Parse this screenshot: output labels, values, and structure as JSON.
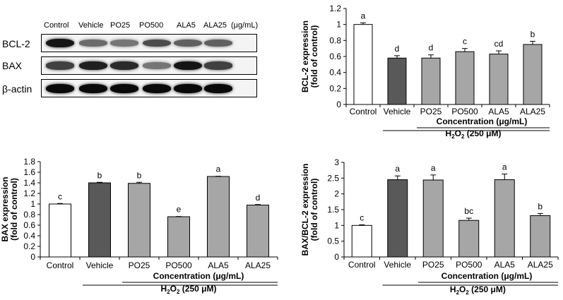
{
  "blot": {
    "lanes": [
      "Control",
      "Vehicle",
      "PO25",
      "PO500",
      "ALA5",
      "ALA25"
    ],
    "unit": "(μg/mL)",
    "rows": [
      {
        "label": "BCL-2",
        "intensity": [
          0.95,
          0.55,
          0.5,
          0.7,
          0.6,
          0.6
        ]
      },
      {
        "label": "BAX",
        "intensity": [
          0.75,
          0.9,
          0.85,
          0.5,
          0.95,
          0.75
        ]
      },
      {
        "label": "β-actin",
        "intensity": [
          1,
          1,
          1,
          1,
          1,
          1
        ]
      }
    ]
  },
  "chart_data": [
    {
      "type": "bar",
      "categories": [
        "Control",
        "Vehicle",
        "PO25",
        "PO500",
        "ALA5",
        "ALA25"
      ],
      "values": [
        1.0,
        0.58,
        0.58,
        0.66,
        0.63,
        0.75
      ],
      "errors": [
        0.02,
        0.03,
        0.04,
        0.04,
        0.04,
        0.04
      ],
      "letters": [
        "a",
        "d",
        "d",
        "c",
        "cd",
        "b"
      ],
      "colors": [
        "#ffffff",
        "#595959",
        "#a6a6a6",
        "#a6a6a6",
        "#a6a6a6",
        "#a6a6a6"
      ],
      "ylabel_line1": "BCL-2 expression",
      "ylabel_line2": "(fold of control)",
      "ylim": [
        0,
        1.2
      ],
      "yticks": [
        "0",
        "0.2",
        "0.4",
        "0.6",
        "0.8",
        "1",
        "1.2"
      ],
      "group_label": "Concentration (μg/mL)",
      "treatment_label": "H2O2 (250 μM)"
    },
    {
      "type": "bar",
      "categories": [
        "Control",
        "Vehicle",
        "PO25",
        "PO500",
        "ALA5",
        "ALA25"
      ],
      "values": [
        1.0,
        1.4,
        1.39,
        0.76,
        1.52,
        0.98
      ],
      "errors": [
        0.01,
        0.01,
        0.02,
        0.005,
        0.005,
        0.01
      ],
      "letters": [
        "c",
        "b",
        "b",
        "e",
        "a",
        "d"
      ],
      "colors": [
        "#ffffff",
        "#595959",
        "#a6a6a6",
        "#a6a6a6",
        "#a6a6a6",
        "#a6a6a6"
      ],
      "ylabel_line1": "BAX expression",
      "ylabel_line2": "(fold of control)",
      "ylim": [
        0,
        1.8
      ],
      "yticks": [
        "0",
        "0.2",
        "0.4",
        "0.6",
        "0.8",
        "1",
        "1.2",
        "1.4",
        "1.6",
        "1.8"
      ],
      "group_label": "Concentration (μg/mL)",
      "treatment_label": "H2O2 (250 μM)"
    },
    {
      "type": "bar",
      "categories": [
        "Control",
        "Vehicle",
        "PO25",
        "PO500",
        "ALA5",
        "ALA25"
      ],
      "values": [
        1.0,
        2.45,
        2.44,
        1.16,
        2.45,
        1.31
      ],
      "errors": [
        0.02,
        0.12,
        0.16,
        0.07,
        0.18,
        0.07
      ],
      "letters": [
        "c",
        "a",
        "a",
        "bc",
        "a",
        "b"
      ],
      "colors": [
        "#ffffff",
        "#595959",
        "#a6a6a6",
        "#a6a6a6",
        "#a6a6a6",
        "#a6a6a6"
      ],
      "ylabel_line1": "BAX/BCL-2 expression",
      "ylabel_line2": "(fold of control)",
      "ylim": [
        0,
        3
      ],
      "yticks": [
        "0",
        "0.5",
        "1",
        "1.5",
        "2",
        "2.5",
        "3"
      ],
      "group_label": "Concentration (μg/mL)",
      "treatment_label": "H2O2 (250 μM)"
    }
  ]
}
